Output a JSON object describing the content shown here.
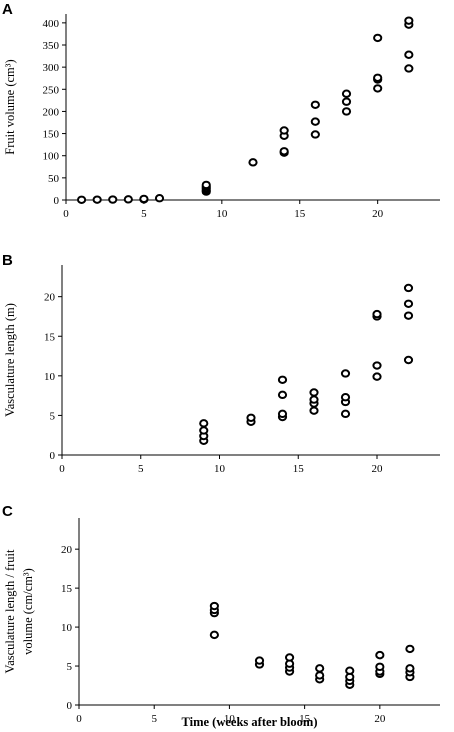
{
  "chart_data": [
    {
      "panel": "A",
      "type": "scatter",
      "ylabel": "Fruit volume (cm³)",
      "xlabel": "",
      "xlim": [
        0,
        24
      ],
      "ylim": [
        0,
        420
      ],
      "xticks": [
        0,
        5,
        10,
        15,
        20
      ],
      "yticks": [
        0,
        50,
        100,
        150,
        200,
        250,
        300,
        350,
        400
      ],
      "points": [
        {
          "x": 1,
          "y": 0.5
        },
        {
          "x": 2,
          "y": 0.8
        },
        {
          "x": 3,
          "y": 1
        },
        {
          "x": 4,
          "y": 1.5
        },
        {
          "x": 5,
          "y": 1.5
        },
        {
          "x": 5,
          "y": 2.5
        },
        {
          "x": 6,
          "y": 4
        },
        {
          "x": 9,
          "y": 19
        },
        {
          "x": 9,
          "y": 22
        },
        {
          "x": 9,
          "y": 26
        },
        {
          "x": 9,
          "y": 30
        },
        {
          "x": 9,
          "y": 34
        },
        {
          "x": 12,
          "y": 85
        },
        {
          "x": 14,
          "y": 107
        },
        {
          "x": 14,
          "y": 110
        },
        {
          "x": 14,
          "y": 145
        },
        {
          "x": 14,
          "y": 157
        },
        {
          "x": 16,
          "y": 148
        },
        {
          "x": 16,
          "y": 177
        },
        {
          "x": 16,
          "y": 215
        },
        {
          "x": 18,
          "y": 200
        },
        {
          "x": 18,
          "y": 222
        },
        {
          "x": 18,
          "y": 240
        },
        {
          "x": 20,
          "y": 252
        },
        {
          "x": 20,
          "y": 272
        },
        {
          "x": 20,
          "y": 276
        },
        {
          "x": 20,
          "y": 366
        },
        {
          "x": 22,
          "y": 297
        },
        {
          "x": 22,
          "y": 328
        },
        {
          "x": 22,
          "y": 396
        },
        {
          "x": 22,
          "y": 405
        }
      ]
    },
    {
      "panel": "B",
      "type": "scatter",
      "ylabel": "Vasculature length (m)",
      "xlabel": "",
      "xlim": [
        0,
        24
      ],
      "ylim": [
        0,
        24
      ],
      "xticks": [
        0,
        5,
        10,
        15,
        20
      ],
      "yticks": [
        0,
        5,
        10,
        15,
        20
      ],
      "points": [
        {
          "x": 9,
          "y": 1.8
        },
        {
          "x": 9,
          "y": 2.4
        },
        {
          "x": 9,
          "y": 3.1
        },
        {
          "x": 9,
          "y": 4.0
        },
        {
          "x": 12,
          "y": 4.2
        },
        {
          "x": 12,
          "y": 4.7
        },
        {
          "x": 14,
          "y": 4.8
        },
        {
          "x": 14,
          "y": 5.2
        },
        {
          "x": 14,
          "y": 7.6
        },
        {
          "x": 14,
          "y": 9.5
        },
        {
          "x": 16,
          "y": 5.6
        },
        {
          "x": 16,
          "y": 6.5
        },
        {
          "x": 16,
          "y": 7.0
        },
        {
          "x": 16,
          "y": 7.9
        },
        {
          "x": 18,
          "y": 5.2
        },
        {
          "x": 18,
          "y": 6.7
        },
        {
          "x": 18,
          "y": 7.3
        },
        {
          "x": 18,
          "y": 10.3
        },
        {
          "x": 20,
          "y": 9.9
        },
        {
          "x": 20,
          "y": 11.3
        },
        {
          "x": 20,
          "y": 17.5
        },
        {
          "x": 20,
          "y": 17.8
        },
        {
          "x": 22,
          "y": 12.0
        },
        {
          "x": 22,
          "y": 17.6
        },
        {
          "x": 22,
          "y": 19.1
        },
        {
          "x": 22,
          "y": 21.1
        }
      ]
    },
    {
      "panel": "C",
      "type": "scatter",
      "ylabel": "Vasculature length / fruit volume (cm/cm³)",
      "ylabel_lines": [
        "Vasculature length / fruit",
        "volume (cm/cm³)"
      ],
      "xlabel": "Time (weeks after bloom)",
      "xlim": [
        0,
        24
      ],
      "ylim": [
        0,
        24
      ],
      "xticks": [
        0,
        5,
        10,
        15,
        20
      ],
      "yticks": [
        0,
        5,
        10,
        15,
        20
      ],
      "points": [
        {
          "x": 9,
          "y": 9.0
        },
        {
          "x": 9,
          "y": 11.8
        },
        {
          "x": 9,
          "y": 12.2
        },
        {
          "x": 9,
          "y": 12.7
        },
        {
          "x": 12,
          "y": 5.2
        },
        {
          "x": 12,
          "y": 5.7
        },
        {
          "x": 14,
          "y": 4.3
        },
        {
          "x": 14,
          "y": 4.8
        },
        {
          "x": 14,
          "y": 5.3
        },
        {
          "x": 14,
          "y": 6.1
        },
        {
          "x": 16,
          "y": 3.3
        },
        {
          "x": 16,
          "y": 3.8
        },
        {
          "x": 16,
          "y": 4.7
        },
        {
          "x": 18,
          "y": 2.6
        },
        {
          "x": 18,
          "y": 3.1
        },
        {
          "x": 18,
          "y": 3.6
        },
        {
          "x": 18,
          "y": 4.4
        },
        {
          "x": 20,
          "y": 4.0
        },
        {
          "x": 20,
          "y": 4.3
        },
        {
          "x": 20,
          "y": 4.9
        },
        {
          "x": 20,
          "y": 6.4
        },
        {
          "x": 22,
          "y": 3.6
        },
        {
          "x": 22,
          "y": 4.2
        },
        {
          "x": 22,
          "y": 4.7
        },
        {
          "x": 22,
          "y": 7.2
        }
      ]
    }
  ]
}
